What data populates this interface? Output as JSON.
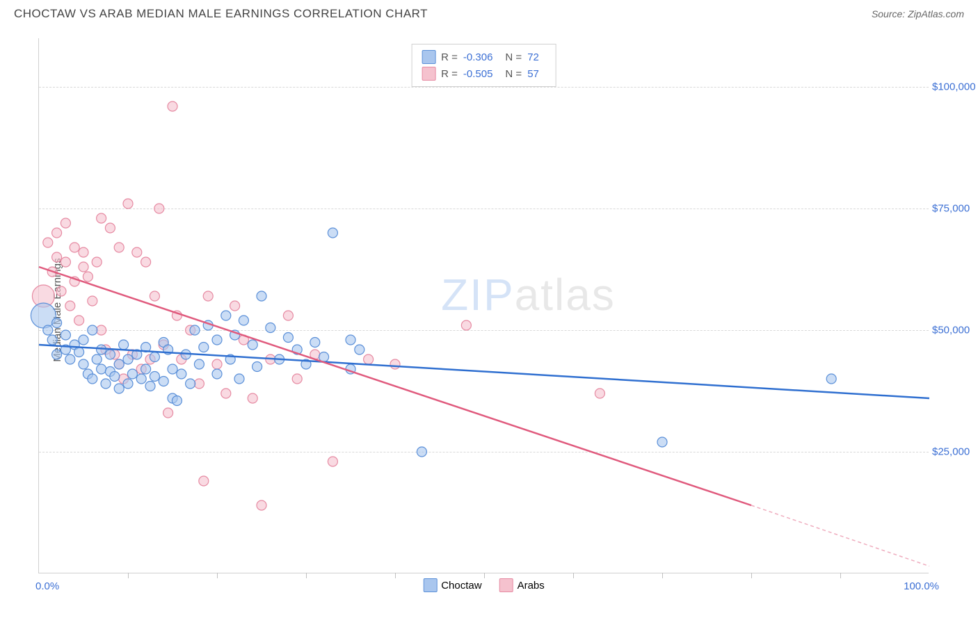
{
  "header": {
    "title": "CHOCTAW VS ARAB MEDIAN MALE EARNINGS CORRELATION CHART",
    "source_prefix": "Source: ",
    "source_name": "ZipAtlas.com"
  },
  "watermark": {
    "part1": "ZIP",
    "part2": "atlas"
  },
  "chart": {
    "type": "scatter",
    "ylabel": "Median Male Earnings",
    "xlim": [
      0,
      100
    ],
    "ylim": [
      0,
      110000
    ],
    "x_axis_label_left": "0.0%",
    "x_axis_label_right": "100.0%",
    "x_ticks_pct": [
      10,
      20,
      30,
      40,
      50,
      60,
      70,
      80,
      90
    ],
    "y_gridlines": [
      {
        "value": 25000,
        "label": "$25,000"
      },
      {
        "value": 50000,
        "label": "$50,000"
      },
      {
        "value": 75000,
        "label": "$75,000"
      },
      {
        "value": 100000,
        "label": "$100,000"
      }
    ],
    "background_color": "#ffffff",
    "grid_color": "#d8d8d8",
    "axis_label_color": "#3b6fd4",
    "series": [
      {
        "name": "Choctaw",
        "fill_color": "#a9c6ee",
        "stroke_color": "#5a8fd8",
        "line_color": "#2f6fd0",
        "R": "-0.306",
        "N": "72",
        "trend": {
          "x1": 0,
          "y1": 47000,
          "x2": 100,
          "y2": 36000,
          "dash_from_x": 100
        },
        "points": [
          {
            "x": 0.5,
            "y": 53000,
            "r": 18
          },
          {
            "x": 1,
            "y": 50000,
            "r": 7
          },
          {
            "x": 1.5,
            "y": 48000,
            "r": 7
          },
          {
            "x": 2,
            "y": 51500,
            "r": 7
          },
          {
            "x": 2,
            "y": 45000,
            "r": 7
          },
          {
            "x": 3,
            "y": 46000,
            "r": 7
          },
          {
            "x": 3,
            "y": 49000,
            "r": 7
          },
          {
            "x": 3.5,
            "y": 44000,
            "r": 7
          },
          {
            "x": 4,
            "y": 47000,
            "r": 7
          },
          {
            "x": 4.5,
            "y": 45500,
            "r": 7
          },
          {
            "x": 5,
            "y": 43000,
            "r": 7
          },
          {
            "x": 5,
            "y": 48000,
            "r": 7
          },
          {
            "x": 5.5,
            "y": 41000,
            "r": 7
          },
          {
            "x": 6,
            "y": 50000,
            "r": 7
          },
          {
            "x": 6,
            "y": 40000,
            "r": 7
          },
          {
            "x": 6.5,
            "y": 44000,
            "r": 7
          },
          {
            "x": 7,
            "y": 46000,
            "r": 7
          },
          {
            "x": 7,
            "y": 42000,
            "r": 7
          },
          {
            "x": 7.5,
            "y": 39000,
            "r": 7
          },
          {
            "x": 8,
            "y": 45000,
            "r": 7
          },
          {
            "x": 8,
            "y": 41500,
            "r": 7
          },
          {
            "x": 8.5,
            "y": 40500,
            "r": 7
          },
          {
            "x": 9,
            "y": 43000,
            "r": 7
          },
          {
            "x": 9,
            "y": 38000,
            "r": 7
          },
          {
            "x": 9.5,
            "y": 47000,
            "r": 7
          },
          {
            "x": 10,
            "y": 39000,
            "r": 7
          },
          {
            "x": 10,
            "y": 44000,
            "r": 7
          },
          {
            "x": 10.5,
            "y": 41000,
            "r": 7
          },
          {
            "x": 11,
            "y": 45000,
            "r": 7
          },
          {
            "x": 11.5,
            "y": 40000,
            "r": 7
          },
          {
            "x": 12,
            "y": 46500,
            "r": 7
          },
          {
            "x": 12,
            "y": 42000,
            "r": 7
          },
          {
            "x": 12.5,
            "y": 38500,
            "r": 7
          },
          {
            "x": 13,
            "y": 44500,
            "r": 7
          },
          {
            "x": 13,
            "y": 40500,
            "r": 7
          },
          {
            "x": 14,
            "y": 47500,
            "r": 7
          },
          {
            "x": 14,
            "y": 39500,
            "r": 7
          },
          {
            "x": 14.5,
            "y": 46000,
            "r": 7
          },
          {
            "x": 15,
            "y": 42000,
            "r": 7
          },
          {
            "x": 15,
            "y": 36000,
            "r": 7
          },
          {
            "x": 15.5,
            "y": 35500,
            "r": 7
          },
          {
            "x": 16,
            "y": 41000,
            "r": 7
          },
          {
            "x": 16.5,
            "y": 45000,
            "r": 7
          },
          {
            "x": 17,
            "y": 39000,
            "r": 7
          },
          {
            "x": 17.5,
            "y": 50000,
            "r": 7
          },
          {
            "x": 18,
            "y": 43000,
            "r": 7
          },
          {
            "x": 18.5,
            "y": 46500,
            "r": 7
          },
          {
            "x": 19,
            "y": 51000,
            "r": 7
          },
          {
            "x": 20,
            "y": 41000,
            "r": 7
          },
          {
            "x": 20,
            "y": 48000,
            "r": 7
          },
          {
            "x": 21,
            "y": 53000,
            "r": 7
          },
          {
            "x": 21.5,
            "y": 44000,
            "r": 7
          },
          {
            "x": 22,
            "y": 49000,
            "r": 7
          },
          {
            "x": 22.5,
            "y": 40000,
            "r": 7
          },
          {
            "x": 23,
            "y": 52000,
            "r": 7
          },
          {
            "x": 24,
            "y": 47000,
            "r": 7
          },
          {
            "x": 24.5,
            "y": 42500,
            "r": 7
          },
          {
            "x": 25,
            "y": 57000,
            "r": 7
          },
          {
            "x": 26,
            "y": 50500,
            "r": 7
          },
          {
            "x": 27,
            "y": 44000,
            "r": 7
          },
          {
            "x": 28,
            "y": 48500,
            "r": 7
          },
          {
            "x": 29,
            "y": 46000,
            "r": 7
          },
          {
            "x": 30,
            "y": 43000,
            "r": 7
          },
          {
            "x": 31,
            "y": 47500,
            "r": 7
          },
          {
            "x": 32,
            "y": 44500,
            "r": 7
          },
          {
            "x": 33,
            "y": 70000,
            "r": 7
          },
          {
            "x": 35,
            "y": 48000,
            "r": 7
          },
          {
            "x": 35,
            "y": 42000,
            "r": 7
          },
          {
            "x": 36,
            "y": 46000,
            "r": 7
          },
          {
            "x": 43,
            "y": 25000,
            "r": 7
          },
          {
            "x": 70,
            "y": 27000,
            "r": 7
          },
          {
            "x": 89,
            "y": 40000,
            "r": 7
          }
        ]
      },
      {
        "name": "Arabs",
        "fill_color": "#f5c2ce",
        "stroke_color": "#e68aa2",
        "line_color": "#e05a7d",
        "R": "-0.505",
        "N": "57",
        "trend": {
          "x1": 0,
          "y1": 63000,
          "x2": 80,
          "y2": 14000,
          "dash_from_x": 80,
          "x3": 100,
          "y3": 1500
        },
        "points": [
          {
            "x": 0.5,
            "y": 57000,
            "r": 16
          },
          {
            "x": 1,
            "y": 68000,
            "r": 7
          },
          {
            "x": 1.5,
            "y": 62000,
            "r": 7
          },
          {
            "x": 2,
            "y": 65000,
            "r": 7
          },
          {
            "x": 2,
            "y": 70000,
            "r": 7
          },
          {
            "x": 2.5,
            "y": 58000,
            "r": 7
          },
          {
            "x": 3,
            "y": 72000,
            "r": 7
          },
          {
            "x": 3,
            "y": 64000,
            "r": 7
          },
          {
            "x": 3.5,
            "y": 55000,
            "r": 7
          },
          {
            "x": 4,
            "y": 67000,
            "r": 7
          },
          {
            "x": 4,
            "y": 60000,
            "r": 7
          },
          {
            "x": 4.5,
            "y": 52000,
            "r": 7
          },
          {
            "x": 5,
            "y": 66000,
            "r": 7
          },
          {
            "x": 5,
            "y": 63000,
            "r": 7
          },
          {
            "x": 5.5,
            "y": 61000,
            "r": 7
          },
          {
            "x": 6,
            "y": 56000,
            "r": 7
          },
          {
            "x": 6.5,
            "y": 64000,
            "r": 7
          },
          {
            "x": 7,
            "y": 50000,
            "r": 7
          },
          {
            "x": 7,
            "y": 73000,
            "r": 7
          },
          {
            "x": 7.5,
            "y": 46000,
            "r": 7
          },
          {
            "x": 8,
            "y": 71000,
            "r": 7
          },
          {
            "x": 8.5,
            "y": 45000,
            "r": 7
          },
          {
            "x": 9,
            "y": 67000,
            "r": 7
          },
          {
            "x": 9,
            "y": 43000,
            "r": 7
          },
          {
            "x": 9.5,
            "y": 40000,
            "r": 7
          },
          {
            "x": 10,
            "y": 76000,
            "r": 7
          },
          {
            "x": 10.5,
            "y": 45000,
            "r": 7
          },
          {
            "x": 11,
            "y": 66000,
            "r": 7
          },
          {
            "x": 11.5,
            "y": 42000,
            "r": 7
          },
          {
            "x": 12,
            "y": 64000,
            "r": 7
          },
          {
            "x": 12.5,
            "y": 44000,
            "r": 7
          },
          {
            "x": 13,
            "y": 57000,
            "r": 7
          },
          {
            "x": 13.5,
            "y": 75000,
            "r": 7
          },
          {
            "x": 14,
            "y": 47000,
            "r": 7
          },
          {
            "x": 14.5,
            "y": 33000,
            "r": 7
          },
          {
            "x": 15,
            "y": 96000,
            "r": 7
          },
          {
            "x": 15.5,
            "y": 53000,
            "r": 7
          },
          {
            "x": 16,
            "y": 44000,
            "r": 7
          },
          {
            "x": 17,
            "y": 50000,
            "r": 7
          },
          {
            "x": 18,
            "y": 39000,
            "r": 7
          },
          {
            "x": 18.5,
            "y": 19000,
            "r": 7
          },
          {
            "x": 19,
            "y": 57000,
            "r": 7
          },
          {
            "x": 20,
            "y": 43000,
            "r": 7
          },
          {
            "x": 21,
            "y": 37000,
            "r": 7
          },
          {
            "x": 22,
            "y": 55000,
            "r": 7
          },
          {
            "x": 23,
            "y": 48000,
            "r": 7
          },
          {
            "x": 24,
            "y": 36000,
            "r": 7
          },
          {
            "x": 25,
            "y": 14000,
            "r": 7
          },
          {
            "x": 26,
            "y": 44000,
            "r": 7
          },
          {
            "x": 28,
            "y": 53000,
            "r": 7
          },
          {
            "x": 29,
            "y": 40000,
            "r": 7
          },
          {
            "x": 31,
            "y": 45000,
            "r": 7
          },
          {
            "x": 33,
            "y": 23000,
            "r": 7
          },
          {
            "x": 37,
            "y": 44000,
            "r": 7
          },
          {
            "x": 40,
            "y": 43000,
            "r": 7
          },
          {
            "x": 48,
            "y": 51000,
            "r": 7
          },
          {
            "x": 63,
            "y": 37000,
            "r": 7
          }
        ]
      }
    ],
    "legend_top": {
      "r_label": "R =",
      "n_label": "N ="
    },
    "legend_bottom": [
      {
        "label": "Choctaw"
      },
      {
        "label": "Arabs"
      }
    ]
  }
}
